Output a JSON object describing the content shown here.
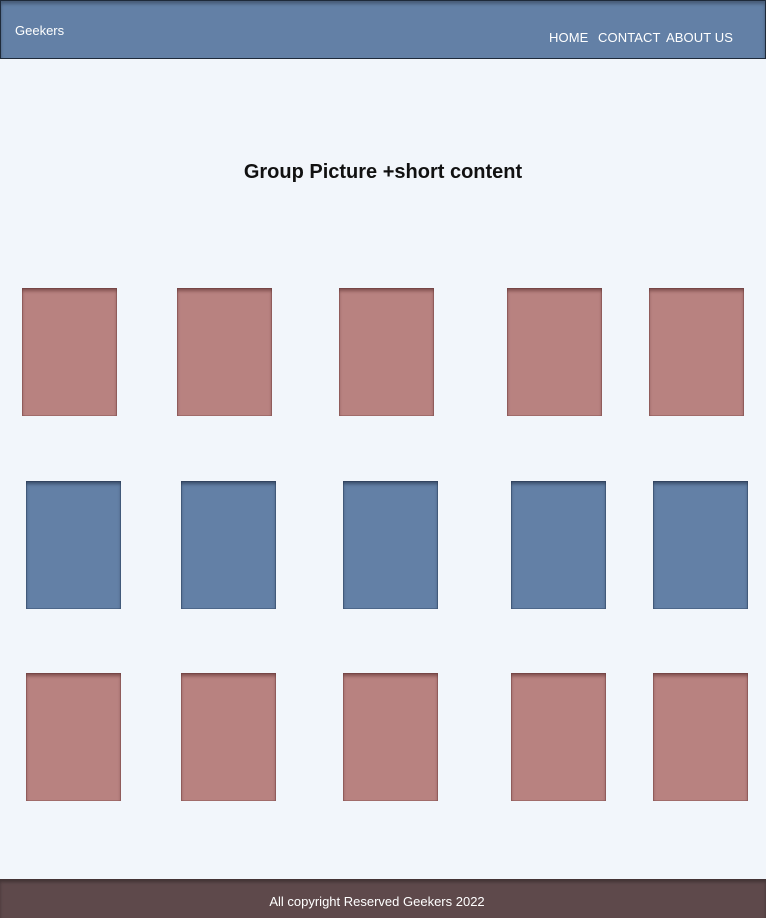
{
  "navbar": {
    "brand": "Geekers",
    "links": [
      {
        "label": "HOME"
      },
      {
        "label": "CONTACT"
      },
      {
        "label": "ABOUT US"
      }
    ],
    "color": "#6380a6"
  },
  "main": {
    "headline": "Group Picture +short content"
  },
  "grid": {
    "rows": [
      {
        "color_name": "rose",
        "color": "#b88280",
        "count": 5
      },
      {
        "color_name": "blue",
        "color": "#6380a6",
        "count": 5
      },
      {
        "color_name": "rose",
        "color": "#b88280",
        "count": 5
      }
    ]
  },
  "footer": {
    "text": "All copyright Reserved Geekers 2022",
    "color": "#5e494b"
  }
}
